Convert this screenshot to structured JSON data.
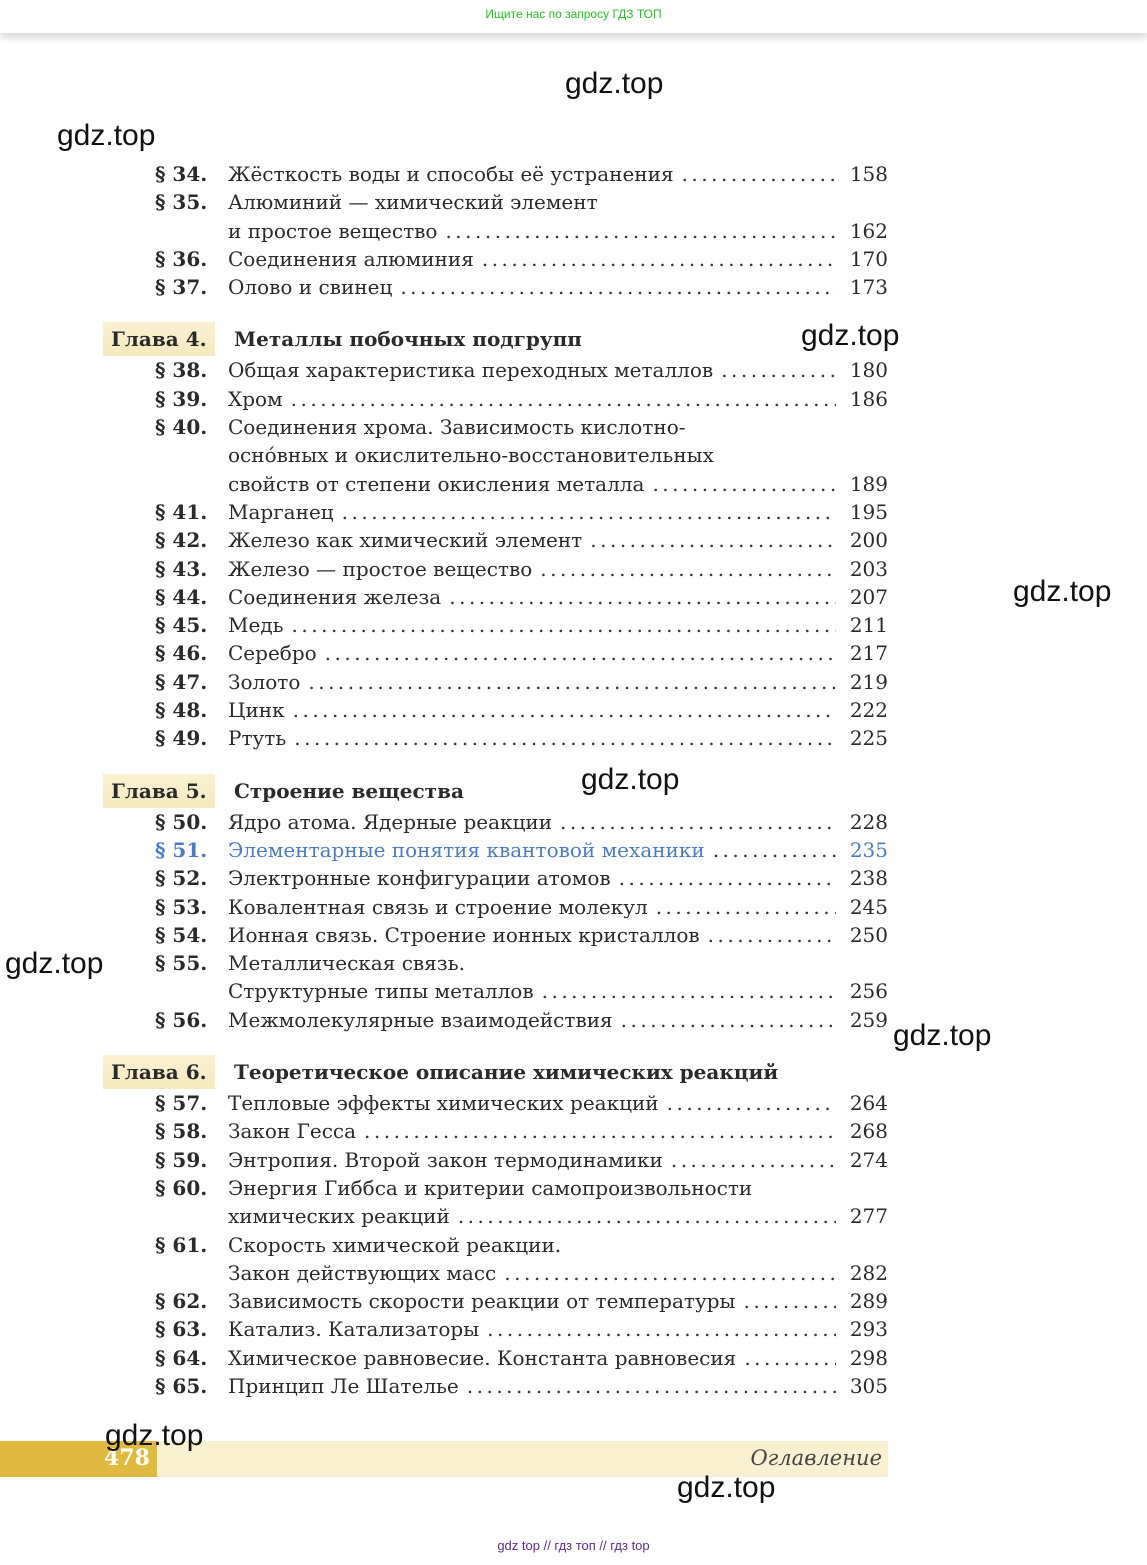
{
  "top_banner": "Ищите нас по запросу ГДЗ ТОП",
  "toc": [
    {
      "type": "entries",
      "entries": [
        {
          "num": "§ 34.",
          "lines": [
            "Жёсткость воды и способы её устранения"
          ],
          "page": "158"
        },
        {
          "num": "§ 35.",
          "lines": [
            "Алюминий — химический элемент",
            "и простое вещество"
          ],
          "page": "162"
        },
        {
          "num": "§ 36.",
          "lines": [
            "Соединения алюминия"
          ],
          "page": "170"
        },
        {
          "num": "§ 37.",
          "lines": [
            "Олово и свинец"
          ],
          "page": "173"
        }
      ]
    },
    {
      "type": "chapter",
      "label": "Глава 4.",
      "title": "Металлы побочных подгрупп"
    },
    {
      "type": "entries",
      "entries": [
        {
          "num": "§ 38.",
          "lines": [
            "Общая характеристика переходных металлов"
          ],
          "page": "180"
        },
        {
          "num": "§ 39.",
          "lines": [
            "Хром"
          ],
          "page": "186"
        },
        {
          "num": "§ 40.",
          "lines": [
            "Соединения хрома. Зависимость кислотно-",
            "осно́вных и окислительно-восстановительных",
            "свойств от степени окисления металла"
          ],
          "page": "189"
        },
        {
          "num": "§ 41.",
          "lines": [
            "Марганец"
          ],
          "page": "195"
        },
        {
          "num": "§ 42.",
          "lines": [
            "Железо как химический элемент"
          ],
          "page": "200"
        },
        {
          "num": "§ 43.",
          "lines": [
            "Железо — простое вещество"
          ],
          "page": "203"
        },
        {
          "num": "§ 44.",
          "lines": [
            "Соединения железа"
          ],
          "page": "207"
        },
        {
          "num": "§ 45.",
          "lines": [
            "Медь"
          ],
          "page": "211"
        },
        {
          "num": "§ 46.",
          "lines": [
            "Серебро"
          ],
          "page": "217"
        },
        {
          "num": "§ 47.",
          "lines": [
            "Золото"
          ],
          "page": "219"
        },
        {
          "num": "§ 48.",
          "lines": [
            "Цинк"
          ],
          "page": "222"
        },
        {
          "num": "§ 49.",
          "lines": [
            "Ртуть"
          ],
          "page": "225"
        }
      ]
    },
    {
      "type": "chapter",
      "label": "Глава 5.",
      "title": "Строение вещества"
    },
    {
      "type": "entries",
      "entries": [
        {
          "num": "§ 50.",
          "lines": [
            "Ядро атома. Ядерные реакции"
          ],
          "page": "228"
        },
        {
          "num": "§ 51.",
          "lines": [
            "Элементарные понятия квантовой механики"
          ],
          "page": "235",
          "highlight": true
        },
        {
          "num": "§ 52.",
          "lines": [
            "Электронные конфигурации атомов"
          ],
          "page": "238"
        },
        {
          "num": "§ 53.",
          "lines": [
            "Ковалентная связь и строение молекул"
          ],
          "page": "245"
        },
        {
          "num": "§ 54.",
          "lines": [
            "Ионная связь. Строение ионных кристаллов"
          ],
          "page": "250"
        },
        {
          "num": "§ 55.",
          "lines": [
            "Металлическая связь.",
            "Структурные типы металлов"
          ],
          "page": "256"
        },
        {
          "num": "§ 56.",
          "lines": [
            "Межмолекулярные взаимодействия"
          ],
          "page": "259"
        }
      ]
    },
    {
      "type": "chapter",
      "label": "Глава 6.",
      "title": "Теоретическое описание химических реакций"
    },
    {
      "type": "entries",
      "entries": [
        {
          "num": "§ 57.",
          "lines": [
            "Тепловые эффекты химических реакций"
          ],
          "page": "264"
        },
        {
          "num": "§ 58.",
          "lines": [
            "Закон Гесса"
          ],
          "page": "268"
        },
        {
          "num": "§ 59.",
          "lines": [
            "Энтропия. Второй закон термодинамики"
          ],
          "page": "274"
        },
        {
          "num": "§ 60.",
          "lines": [
            "Энергия Гиббса и критерии самопроизвольности",
            "химических реакций"
          ],
          "page": "277"
        },
        {
          "num": "§ 61.",
          "lines": [
            "Скорость химической реакции.",
            "Закон действующих масс"
          ],
          "page": "282"
        },
        {
          "num": "§ 62.",
          "lines": [
            "Зависимость скорости реакции от температуры"
          ],
          "page": "289"
        },
        {
          "num": "§ 63.",
          "lines": [
            "Катализ. Катализаторы"
          ],
          "page": "293"
        },
        {
          "num": "§ 64.",
          "lines": [
            "Химическое равновесие. Константа равновесия"
          ],
          "page": "298"
        },
        {
          "num": "§ 65.",
          "lines": [
            "Принцип Ле Шателье"
          ],
          "page": "305"
        }
      ]
    }
  ],
  "footer": {
    "page_number": "478",
    "section_title": "Оглавление"
  },
  "watermark": "gdz.top",
  "bottom_links": "gdz top  //  гдз топ  //  гдз top",
  "colors": {
    "banner_green": "#22c322",
    "link_blue": "#4a7cc6",
    "gold": "#e0b93f",
    "cream": "#f8f0cf",
    "footer_purple": "#5a2d8c"
  }
}
